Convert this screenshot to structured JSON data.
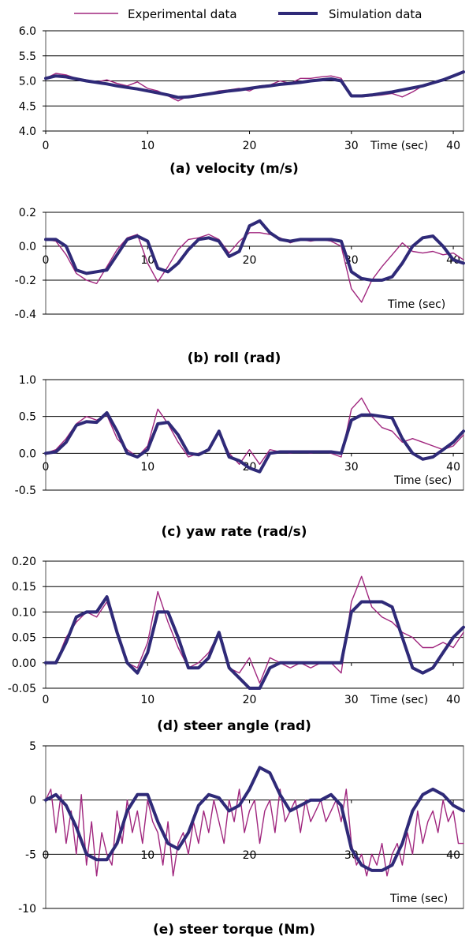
{
  "legend": {
    "experimental_label": "Experimental data",
    "simulation_label": "Simulation data",
    "placement": "top"
  },
  "colors": {
    "experimental": "#a0267e",
    "simulation": "#2f2a78"
  },
  "chart_data": [
    {
      "type": "line",
      "id": "velocity",
      "caption": "(a)    velocity (m/s)",
      "xlabel": "Time (sec)",
      "ylabel": "",
      "xlim": [
        0,
        41
      ],
      "ylim": [
        4.0,
        6.0
      ],
      "xticks": [
        "0",
        "10",
        "20",
        "30",
        "40"
      ],
      "yticks": [
        "4.0",
        "4.5",
        "5.0",
        "5.5",
        "6.0"
      ],
      "ytick_values": [
        4.0,
        4.5,
        5.0,
        5.5,
        6.0
      ],
      "zero_axis": false,
      "grid": true,
      "series": [
        {
          "name": "Experimental data",
          "x": [
            0,
            1,
            2,
            3,
            4,
            5,
            6,
            7,
            8,
            9,
            10,
            11,
            12,
            13,
            14,
            15,
            16,
            17,
            18,
            19,
            20,
            21,
            22,
            23,
            24,
            25,
            26,
            27,
            28,
            29,
            30,
            31,
            32,
            33,
            34,
            35,
            36,
            37,
            38,
            39,
            40,
            41
          ],
          "y": [
            5.05,
            5.15,
            5.12,
            5.05,
            5.02,
            4.98,
            5.02,
            4.95,
            4.9,
            4.98,
            4.85,
            4.8,
            4.7,
            4.6,
            4.7,
            4.72,
            4.75,
            4.8,
            4.82,
            4.85,
            4.8,
            4.9,
            4.92,
            5.0,
            4.95,
            5.05,
            5.05,
            5.08,
            5.1,
            5.05,
            4.7,
            4.68,
            4.7,
            4.72,
            4.75,
            4.68,
            4.78,
            4.9,
            4.95,
            5.0,
            5.1,
            5.2
          ]
        },
        {
          "name": "Simulation data",
          "x": [
            0,
            1,
            2,
            3,
            4,
            5,
            6,
            7,
            8,
            9,
            10,
            11,
            12,
            13,
            14,
            15,
            16,
            17,
            18,
            19,
            20,
            21,
            22,
            23,
            24,
            25,
            26,
            27,
            28,
            29,
            30,
            31,
            32,
            33,
            34,
            35,
            36,
            37,
            38,
            39,
            40,
            41
          ],
          "y": [
            5.05,
            5.1,
            5.08,
            5.04,
            5.0,
            4.97,
            4.94,
            4.9,
            4.87,
            4.84,
            4.8,
            4.76,
            4.72,
            4.67,
            4.68,
            4.71,
            4.74,
            4.77,
            4.8,
            4.82,
            4.85,
            4.88,
            4.9,
            4.93,
            4.95,
            4.97,
            5.0,
            5.02,
            5.04,
            5.0,
            4.7,
            4.7,
            4.72,
            4.75,
            4.78,
            4.82,
            4.86,
            4.9,
            4.96,
            5.02,
            5.1,
            5.18
          ]
        }
      ]
    },
    {
      "type": "line",
      "id": "roll",
      "caption": "(b)    roll (rad)",
      "xlabel": "Time (sec)",
      "ylabel": "",
      "xlim": [
        0,
        41
      ],
      "ylim": [
        -0.4,
        0.2
      ],
      "xticks": [
        "0",
        "10",
        "20",
        "30",
        "40"
      ],
      "yticks": [
        "-0.4",
        "-0.2",
        "0.0",
        "0.2"
      ],
      "ytick_values": [
        -0.4,
        -0.2,
        0.0,
        0.2
      ],
      "zero_axis": true,
      "grid": true,
      "series": [
        {
          "name": "Experimental data",
          "x": [
            0,
            1,
            2,
            3,
            4,
            5,
            6,
            7,
            8,
            9,
            10,
            11,
            12,
            13,
            14,
            15,
            16,
            17,
            18,
            19,
            20,
            21,
            22,
            23,
            24,
            25,
            26,
            27,
            28,
            29,
            30,
            31,
            32,
            33,
            34,
            35,
            36,
            37,
            38,
            39,
            40,
            41
          ],
          "y": [
            0.04,
            0.03,
            -0.05,
            -0.16,
            -0.2,
            -0.22,
            -0.12,
            -0.02,
            0.05,
            0.07,
            -0.1,
            -0.21,
            -0.12,
            -0.02,
            0.04,
            0.05,
            0.07,
            0.04,
            -0.04,
            0.03,
            0.08,
            0.08,
            0.07,
            0.05,
            0.02,
            0.04,
            0.03,
            0.04,
            0.03,
            0.0,
            -0.25,
            -0.33,
            -0.2,
            -0.12,
            -0.05,
            0.02,
            -0.03,
            -0.04,
            -0.03,
            -0.05,
            -0.04,
            -0.08
          ]
        },
        {
          "name": "Simulation data",
          "x": [
            0,
            1,
            2,
            3,
            4,
            5,
            6,
            7,
            8,
            9,
            10,
            11,
            12,
            13,
            14,
            15,
            16,
            17,
            18,
            19,
            20,
            21,
            22,
            23,
            24,
            25,
            26,
            27,
            28,
            29,
            30,
            31,
            32,
            33,
            34,
            35,
            36,
            37,
            38,
            39,
            40,
            41
          ],
          "y": [
            0.04,
            0.04,
            0.0,
            -0.14,
            -0.16,
            -0.15,
            -0.14,
            -0.05,
            0.04,
            0.06,
            0.03,
            -0.13,
            -0.15,
            -0.1,
            -0.02,
            0.04,
            0.05,
            0.03,
            -0.06,
            -0.03,
            0.12,
            0.15,
            0.08,
            0.04,
            0.03,
            0.04,
            0.04,
            0.04,
            0.04,
            0.03,
            -0.15,
            -0.19,
            -0.2,
            -0.2,
            -0.18,
            -0.1,
            0.0,
            0.05,
            0.06,
            0.0,
            -0.08,
            -0.1
          ]
        }
      ]
    },
    {
      "type": "line",
      "id": "yaw_rate",
      "caption": "(c)    yaw rate (rad/s)",
      "xlabel": "Time (sec)",
      "ylabel": "",
      "xlim": [
        0,
        41
      ],
      "ylim": [
        -0.5,
        1.0
      ],
      "xticks": [
        "0",
        "10",
        "20",
        "30",
        "40"
      ],
      "yticks": [
        "-0.5",
        "0.0",
        "0.5",
        "1.0"
      ],
      "ytick_values": [
        -0.5,
        0.0,
        0.5,
        1.0
      ],
      "zero_axis": true,
      "grid": true,
      "series": [
        {
          "name": "Experimental data",
          "x": [
            0,
            1,
            2,
            3,
            4,
            5,
            6,
            7,
            8,
            9,
            10,
            11,
            12,
            13,
            14,
            15,
            16,
            17,
            18,
            19,
            20,
            21,
            22,
            23,
            24,
            25,
            26,
            27,
            28,
            29,
            30,
            31,
            32,
            33,
            34,
            35,
            36,
            37,
            38,
            39,
            40,
            41
          ],
          "y": [
            0.0,
            0.05,
            0.2,
            0.4,
            0.5,
            0.45,
            0.52,
            0.2,
            0.05,
            -0.05,
            0.1,
            0.6,
            0.4,
            0.15,
            -0.05,
            0.0,
            0.05,
            0.3,
            0.0,
            -0.15,
            0.05,
            -0.15,
            0.05,
            0.02,
            0.0,
            0.02,
            0.0,
            0.02,
            0.0,
            -0.05,
            0.6,
            0.75,
            0.5,
            0.35,
            0.3,
            0.15,
            0.2,
            0.15,
            0.1,
            0.05,
            0.1,
            0.25
          ]
        },
        {
          "name": "Simulation data",
          "x": [
            0,
            1,
            2,
            3,
            4,
            5,
            6,
            7,
            8,
            9,
            10,
            11,
            12,
            13,
            14,
            15,
            16,
            17,
            18,
            19,
            20,
            21,
            22,
            23,
            24,
            25,
            26,
            27,
            28,
            29,
            30,
            31,
            32,
            33,
            34,
            35,
            36,
            37,
            38,
            39,
            40,
            41
          ],
          "y": [
            0.0,
            0.02,
            0.15,
            0.38,
            0.43,
            0.42,
            0.55,
            0.3,
            0.0,
            -0.05,
            0.05,
            0.4,
            0.42,
            0.25,
            0.0,
            -0.02,
            0.05,
            0.3,
            -0.05,
            -0.1,
            -0.2,
            -0.25,
            0.0,
            0.02,
            0.02,
            0.02,
            0.02,
            0.02,
            0.02,
            0.0,
            0.45,
            0.52,
            0.52,
            0.5,
            0.48,
            0.2,
            0.0,
            -0.08,
            -0.05,
            0.05,
            0.15,
            0.3
          ]
        }
      ]
    },
    {
      "type": "line",
      "id": "steer_angle",
      "caption": "(d)    steer angle (rad)",
      "xlabel": "Time (sec)",
      "ylabel": "",
      "xlim": [
        0,
        41
      ],
      "ylim": [
        -0.05,
        0.2
      ],
      "xticks": [
        "0",
        "10",
        "20",
        "30",
        "40"
      ],
      "yticks": [
        "-0.05",
        "0.00",
        "0.05",
        "0.10",
        "0.15",
        "0.20"
      ],
      "ytick_values": [
        -0.05,
        0.0,
        0.05,
        0.1,
        0.15,
        0.2
      ],
      "zero_axis": true,
      "grid": true,
      "series": [
        {
          "name": "Experimental data",
          "x": [
            0,
            1,
            2,
            3,
            4,
            5,
            6,
            7,
            8,
            9,
            10,
            11,
            12,
            13,
            14,
            15,
            16,
            17,
            18,
            19,
            20,
            21,
            22,
            23,
            24,
            25,
            26,
            27,
            28,
            29,
            30,
            31,
            32,
            33,
            34,
            35,
            36,
            37,
            38,
            39,
            40,
            41
          ],
          "y": [
            0.0,
            0.0,
            0.05,
            0.08,
            0.1,
            0.09,
            0.12,
            0.06,
            0.0,
            -0.01,
            0.04,
            0.14,
            0.08,
            0.03,
            -0.01,
            0.0,
            0.02,
            0.06,
            -0.01,
            -0.02,
            0.01,
            -0.04,
            0.01,
            0.0,
            -0.01,
            0.0,
            -0.01,
            0.0,
            0.0,
            -0.02,
            0.12,
            0.17,
            0.11,
            0.09,
            0.08,
            0.06,
            0.05,
            0.03,
            0.03,
            0.04,
            0.03,
            0.06
          ]
        },
        {
          "name": "Simulation data",
          "x": [
            0,
            1,
            2,
            3,
            4,
            5,
            6,
            7,
            8,
            9,
            10,
            11,
            12,
            13,
            14,
            15,
            16,
            17,
            18,
            19,
            20,
            21,
            22,
            23,
            24,
            25,
            26,
            27,
            28,
            29,
            30,
            31,
            32,
            33,
            34,
            35,
            36,
            37,
            38,
            39,
            40,
            41
          ],
          "y": [
            0.0,
            0.0,
            0.04,
            0.09,
            0.1,
            0.1,
            0.13,
            0.06,
            0.0,
            -0.02,
            0.02,
            0.1,
            0.1,
            0.05,
            -0.01,
            -0.01,
            0.01,
            0.06,
            -0.01,
            -0.03,
            -0.05,
            -0.05,
            -0.01,
            0.0,
            0.0,
            0.0,
            0.0,
            0.0,
            0.0,
            0.0,
            0.1,
            0.12,
            0.12,
            0.12,
            0.11,
            0.05,
            -0.01,
            -0.02,
            -0.01,
            0.02,
            0.05,
            0.07
          ]
        }
      ]
    },
    {
      "type": "line",
      "id": "steer_torque",
      "caption": "(e)    steer torque (Nm)",
      "xlabel": "Time (sec)",
      "ylabel": "",
      "xlim": [
        0,
        41
      ],
      "ylim": [
        -10,
        5
      ],
      "xticks": [
        "0",
        "10",
        "20",
        "30",
        "40"
      ],
      "yticks": [
        "-10",
        "-5",
        "0",
        "5"
      ],
      "ytick_values": [
        -10,
        -5,
        0,
        5
      ],
      "zero_axis": true,
      "grid": true,
      "series": [
        {
          "name": "Experimental data",
          "x": [
            0,
            0.5,
            1,
            1.5,
            2,
            2.5,
            3,
            3.5,
            4,
            4.5,
            5,
            5.5,
            6,
            6.5,
            7,
            7.5,
            8,
            8.5,
            9,
            9.5,
            10,
            10.5,
            11,
            11.5,
            12,
            12.5,
            13,
            13.5,
            14,
            14.5,
            15,
            15.5,
            16,
            16.5,
            17,
            17.5,
            18,
            18.5,
            19,
            19.5,
            20,
            20.5,
            21,
            21.5,
            22,
            22.5,
            23,
            23.5,
            24,
            24.5,
            25,
            25.5,
            26,
            26.5,
            27,
            27.5,
            28,
            28.5,
            29,
            29.5,
            30,
            30.5,
            31,
            31.5,
            32,
            32.5,
            33,
            33.5,
            34,
            34.5,
            35,
            35.5,
            36,
            36.5,
            37,
            37.5,
            38,
            38.5,
            39,
            39.5,
            40,
            40.5,
            41
          ],
          "y": [
            0,
            1,
            -3,
            0.5,
            -4,
            -1,
            -5,
            0.5,
            -6,
            -2,
            -7,
            -3,
            -5,
            -6,
            -1,
            -4,
            0,
            -3,
            -1,
            -4,
            0,
            -2,
            -3,
            -6,
            -2,
            -7,
            -4,
            -3,
            -5,
            -2,
            -4,
            -1,
            -3,
            0,
            -2,
            -4,
            0,
            -2,
            1,
            -3,
            -1,
            0,
            -4,
            -1,
            0,
            -3,
            1,
            -2,
            -1,
            0,
            -3,
            0,
            -2,
            -1,
            0,
            -2,
            -1,
            0,
            -2,
            1,
            -4,
            -6,
            -5,
            -7,
            -5,
            -6,
            -4,
            -7,
            -5,
            -4,
            -6,
            -3,
            -5,
            -1,
            -4,
            -2,
            -1,
            -3,
            0,
            -2,
            -1,
            -4,
            -4
          ]
        },
        {
          "name": "Simulation data",
          "x": [
            0,
            1,
            2,
            3,
            4,
            5,
            6,
            7,
            8,
            9,
            10,
            11,
            12,
            13,
            14,
            15,
            16,
            17,
            18,
            19,
            20,
            21,
            22,
            23,
            24,
            25,
            26,
            27,
            28,
            29,
            30,
            31,
            32,
            33,
            34,
            35,
            36,
            37,
            38,
            39,
            40,
            41
          ],
          "y": [
            0.0,
            0.5,
            -0.5,
            -2.5,
            -5.0,
            -5.5,
            -5.5,
            -4.0,
            -1.0,
            0.5,
            0.5,
            -2.0,
            -4.0,
            -4.5,
            -3.0,
            -0.5,
            0.5,
            0.2,
            -1.0,
            -0.5,
            1.0,
            3.0,
            2.5,
            0.5,
            -1.0,
            -0.5,
            0.0,
            0.0,
            0.5,
            -0.5,
            -4.5,
            -6.0,
            -6.5,
            -6.5,
            -6.0,
            -4.0,
            -1.0,
            0.5,
            1.0,
            0.5,
            -0.5,
            -1.0
          ]
        }
      ]
    }
  ]
}
